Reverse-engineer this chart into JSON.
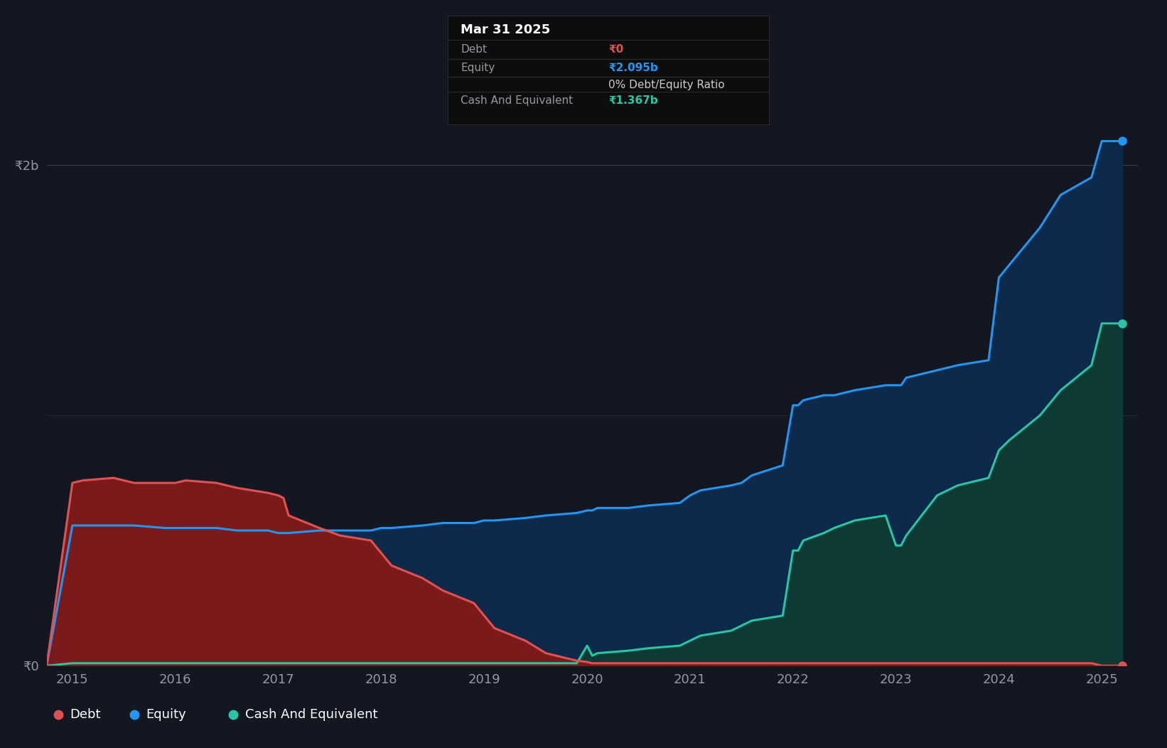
{
  "bg_color": "#131722",
  "plot_bg_color": "#131722",
  "grid_color": "#333a48",
  "tooltip": {
    "date": "Mar 31 2025",
    "debt_label": "Debt",
    "debt_value": "₹0",
    "equity_label": "Equity",
    "equity_value": "₹2.095b",
    "ratio_text": "0% Debt/Equity Ratio",
    "cash_label": "Cash And Equivalent",
    "cash_value": "₹1.367b"
  },
  "legend": [
    {
      "label": "Debt",
      "color": "#e05252"
    },
    {
      "label": "Equity",
      "color": "#2196f3"
    },
    {
      "label": "Cash And Equivalent",
      "color": "#26c6a6"
    }
  ],
  "debt_color": "#e05252",
  "debt_fill": "#7a1a1a",
  "equity_color": "#2196f3",
  "equity_fill": "#0d2a4a",
  "cash_color": "#26c6a6",
  "cash_fill": "#0d3a35",
  "line_width": 2.2,
  "years": [
    2014.75,
    2015.0,
    2015.1,
    2015.4,
    2015.6,
    2015.9,
    2016.0,
    2016.1,
    2016.4,
    2016.6,
    2016.9,
    2017.0,
    2017.05,
    2017.1,
    2017.4,
    2017.6,
    2017.9,
    2018.0,
    2018.1,
    2018.4,
    2018.6,
    2018.9,
    2019.0,
    2019.1,
    2019.4,
    2019.6,
    2019.9,
    2020.0,
    2020.05,
    2020.1,
    2020.4,
    2020.6,
    2020.9,
    2021.0,
    2021.1,
    2021.4,
    2021.5,
    2021.6,
    2021.9,
    2022.0,
    2022.05,
    2022.1,
    2022.3,
    2022.4,
    2022.6,
    2022.9,
    2023.0,
    2023.05,
    2023.1,
    2023.4,
    2023.6,
    2023.9,
    2024.0,
    2024.1,
    2024.4,
    2024.6,
    2024.9,
    2025.0,
    2025.2
  ],
  "debt": [
    0.0,
    0.73,
    0.74,
    0.75,
    0.73,
    0.73,
    0.73,
    0.74,
    0.73,
    0.71,
    0.69,
    0.68,
    0.67,
    0.6,
    0.55,
    0.52,
    0.5,
    0.45,
    0.4,
    0.35,
    0.3,
    0.25,
    0.2,
    0.15,
    0.1,
    0.05,
    0.02,
    0.015,
    0.01,
    0.01,
    0.01,
    0.01,
    0.01,
    0.01,
    0.01,
    0.01,
    0.01,
    0.01,
    0.01,
    0.01,
    0.01,
    0.01,
    0.01,
    0.01,
    0.01,
    0.01,
    0.01,
    0.01,
    0.01,
    0.01,
    0.01,
    0.01,
    0.01,
    0.01,
    0.01,
    0.01,
    0.01,
    0.0,
    0.0
  ],
  "equity": [
    0.0,
    0.56,
    0.56,
    0.56,
    0.56,
    0.55,
    0.55,
    0.55,
    0.55,
    0.54,
    0.54,
    0.53,
    0.53,
    0.53,
    0.54,
    0.54,
    0.54,
    0.55,
    0.55,
    0.56,
    0.57,
    0.57,
    0.58,
    0.58,
    0.59,
    0.6,
    0.61,
    0.62,
    0.62,
    0.63,
    0.63,
    0.64,
    0.65,
    0.68,
    0.7,
    0.72,
    0.73,
    0.76,
    0.8,
    1.04,
    1.04,
    1.06,
    1.08,
    1.08,
    1.1,
    1.12,
    1.12,
    1.12,
    1.15,
    1.18,
    1.2,
    1.22,
    1.55,
    1.6,
    1.75,
    1.88,
    1.95,
    2.095,
    2.095
  ],
  "cash": [
    0.0,
    0.01,
    0.01,
    0.01,
    0.01,
    0.01,
    0.01,
    0.01,
    0.01,
    0.01,
    0.01,
    0.01,
    0.01,
    0.01,
    0.01,
    0.01,
    0.01,
    0.01,
    0.01,
    0.01,
    0.01,
    0.01,
    0.01,
    0.01,
    0.01,
    0.01,
    0.01,
    0.08,
    0.04,
    0.05,
    0.06,
    0.07,
    0.08,
    0.1,
    0.12,
    0.14,
    0.16,
    0.18,
    0.2,
    0.46,
    0.46,
    0.5,
    0.53,
    0.55,
    0.58,
    0.6,
    0.48,
    0.48,
    0.52,
    0.68,
    0.72,
    0.75,
    0.86,
    0.9,
    1.0,
    1.1,
    1.2,
    1.367,
    1.367
  ],
  "ylim": [
    0,
    2.3
  ],
  "xlim": [
    2014.75,
    2025.35
  ]
}
